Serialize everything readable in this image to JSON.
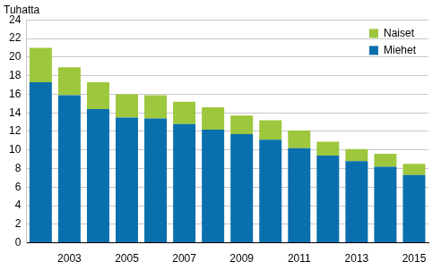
{
  "chart_data": {
    "type": "bar",
    "stacked": true,
    "ylabel": "Tuhatta",
    "categories": [
      null,
      "2003",
      null,
      "2005",
      null,
      "2007",
      null,
      "2009",
      null,
      "2011",
      null,
      "2013",
      null,
      "2015"
    ],
    "series": [
      {
        "name": "Miehet",
        "color": "#0a6fad",
        "values": [
          17.3,
          15.9,
          14.4,
          13.5,
          13.4,
          12.8,
          12.2,
          11.7,
          11.1,
          10.2,
          9.4,
          8.8,
          8.2,
          7.3
        ]
      },
      {
        "name": "Naiset",
        "color": "#9dc73c",
        "values": [
          3.7,
          3.0,
          2.9,
          2.5,
          2.5,
          2.4,
          2.4,
          2.0,
          2.1,
          1.9,
          1.5,
          1.3,
          1.4,
          1.2
        ]
      }
    ],
    "ylim": [
      0,
      24
    ],
    "yticks": [
      0,
      2,
      4,
      6,
      8,
      10,
      12,
      14,
      16,
      18,
      20,
      22,
      24
    ],
    "grid": true,
    "legend": "upper right"
  }
}
